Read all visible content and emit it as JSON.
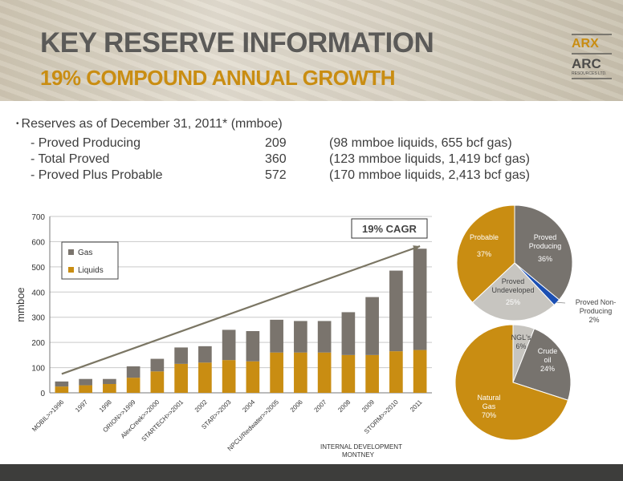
{
  "header": {
    "title": "KEY RESERVE INFORMATION",
    "subtitle": "19% COMPOUND ANNUAL GROWTH"
  },
  "logo": {
    "top": "ARX",
    "bottom": "ARC",
    "small": "RESOURCES LTD."
  },
  "reserves": {
    "heading": "Reserves as of December 31, 2011*  (mmboe)",
    "rows": [
      {
        "label": "- Proved Producing",
        "value": "209",
        "detail": "(98 mmboe liquids, 655 bcf gas)"
      },
      {
        "label": "- Total Proved",
        "value": "360",
        "detail": "(123 mmboe liquids, 1,419 bcf gas)"
      },
      {
        "label": "- Proved Plus Probable",
        "value": "572",
        "detail": "(170 mmboe liquids, 2,413 bcf gas)"
      }
    ]
  },
  "colors": {
    "gas": "#7a746d",
    "liquids": "#c98d12",
    "axis": "#555555",
    "arrow": "#7b7664",
    "blue": "#1b4fb3",
    "light": "#c7c5c0"
  },
  "chart_data": [
    {
      "type": "bar",
      "stacked": true,
      "ylabel": "mmboe",
      "ylim": [
        0,
        700
      ],
      "yticks": [
        0,
        100,
        200,
        300,
        400,
        500,
        600,
        700
      ],
      "categories": [
        "MOBIL>>1996",
        "1997",
        "1998",
        "ORION>>1999",
        "AlexCreek>>2000",
        "STARTECH>>2001",
        "2002",
        "STAR>>2003",
        "2004",
        "NPCU/Redwater>>2005",
        "2006",
        "2007",
        "2008",
        "2009",
        "STORM>>2010",
        "2011"
      ],
      "series": [
        {
          "name": "Liquids",
          "color": "#c98d12",
          "values": [
            25,
            30,
            35,
            60,
            85,
            115,
            120,
            130,
            125,
            160,
            160,
            160,
            150,
            150,
            165,
            170
          ]
        },
        {
          "name": "Gas",
          "color": "#7a746d",
          "values": [
            20,
            25,
            20,
            45,
            50,
            65,
            65,
            120,
            120,
            130,
            125,
            125,
            170,
            230,
            320,
            402
          ]
        }
      ],
      "legend": [
        "Gas",
        "Liquids"
      ],
      "legend_position": "top-left",
      "annotation": "19% CAGR",
      "x_note_line1": "INTERNAL DEVELOPMENT",
      "x_note_line2": "MONTNEY"
    },
    {
      "type": "pie",
      "slices": [
        {
          "label": "Proved Producing",
          "value": 36,
          "text": "36%",
          "color": "#77736e"
        },
        {
          "label": "Proved Non-Producing",
          "value": 2,
          "text": "2%",
          "color": "#1b4fb3"
        },
        {
          "label": "Proved Undeveloped",
          "value": 25,
          "text": "25%",
          "color": "#c7c5c0"
        },
        {
          "label": "Probable",
          "value": 37,
          "text": "37%",
          "color": "#c98d12"
        }
      ]
    },
    {
      "type": "pie",
      "slices": [
        {
          "label": "NGL's",
          "value": 6,
          "text": "6%",
          "color": "#c7c5c0"
        },
        {
          "label": "Crude oil",
          "value": 24,
          "text": "24%",
          "color": "#77736e"
        },
        {
          "label": "Natural Gas",
          "value": 70,
          "text": "70%",
          "color": "#c98d12"
        }
      ]
    }
  ]
}
